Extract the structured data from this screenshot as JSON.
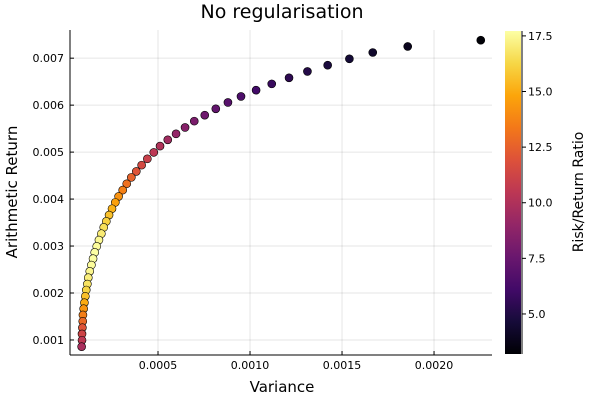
{
  "chart_data": {
    "type": "scatter",
    "title": "No regularisation",
    "xlabel": "Variance",
    "ylabel": "Arithmetic Return",
    "xlim": [
      2.17e-05,
      0.002315
    ],
    "ylim": [
      0.00068,
      0.0076
    ],
    "grid": true,
    "legend": "none",
    "x_ticks": [
      {
        "value": 0.0005,
        "label": "0.0005"
      },
      {
        "value": 0.001,
        "label": "0.0010"
      },
      {
        "value": 0.0015,
        "label": "0.0015"
      },
      {
        "value": 0.002,
        "label": "0.0020"
      }
    ],
    "y_ticks": [
      {
        "value": 0.001,
        "label": "0.001"
      },
      {
        "value": 0.002,
        "label": "0.002"
      },
      {
        "value": 0.003,
        "label": "0.003"
      },
      {
        "value": 0.004,
        "label": "0.004"
      },
      {
        "value": 0.005,
        "label": "0.005"
      },
      {
        "value": 0.006,
        "label": "0.006"
      },
      {
        "value": 0.007,
        "label": "0.007"
      }
    ],
    "colorbar": {
      "label": "Risk/Return Ratio",
      "colormap": "inferno",
      "range": [
        3.2,
        17.72
      ],
      "ticks": [
        {
          "value": 5.0,
          "label": "5.0"
        },
        {
          "value": 7.5,
          "label": "7.5"
        },
        {
          "value": 10.0,
          "label": "10.0"
        },
        {
          "value": 12.5,
          "label": "12.5"
        },
        {
          "value": 15.0,
          "label": "15.0"
        },
        {
          "value": 17.5,
          "label": "17.5"
        }
      ]
    },
    "x": [
      0.002254,
      0.001857,
      0.001667,
      0.00154,
      0.001422,
      0.001312,
      0.001212,
      0.001118,
      0.001033,
      0.000951,
      0.00088,
      0.000814,
      0.000754,
      0.000697,
      0.000647,
      0.000598,
      0.000553,
      0.000511,
      0.000477,
      0.000442,
      0.000411,
      0.000382,
      0.000355,
      0.00033,
      0.000308,
      0.000286,
      0.000268,
      0.00025,
      0.000234,
      0.000219,
      0.000205,
      0.000192,
      0.000179,
      0.000167,
      0.000156,
      0.000147,
      0.000138,
      0.000129,
      0.000121,
      0.000116,
      0.00011,
      0.000105,
      0.0001,
      9.6e-05,
      9.2e-05,
      9.1e-05,
      8.9e-05,
      8.7e-05,
      8.7e-05,
      8.5e-05
    ],
    "y": [
      0.007383,
      0.007249,
      0.007121,
      0.006986,
      0.006851,
      0.006717,
      0.006582,
      0.006453,
      0.006319,
      0.006185,
      0.006057,
      0.005922,
      0.005787,
      0.00566,
      0.005525,
      0.005389,
      0.005262,
      0.005128,
      0.004994,
      0.004857,
      0.004723,
      0.004589,
      0.004462,
      0.004326,
      0.004191,
      0.004057,
      0.00393,
      0.003794,
      0.00366,
      0.003526,
      0.003398,
      0.003262,
      0.003128,
      0.002994,
      0.002866,
      0.00273,
      0.002596,
      0.002462,
      0.002326,
      0.002191,
      0.002064,
      0.00193,
      0.001794,
      0.001666,
      0.001532,
      0.001398,
      0.001262,
      0.001128,
      0.000994,
      0.000857
    ],
    "color_values": [
      3.28,
      3.9,
      4.27,
      4.54,
      4.82,
      5.12,
      5.43,
      5.77,
      6.12,
      6.5,
      6.88,
      7.28,
      7.68,
      8.12,
      8.54,
      9.01,
      9.52,
      10.04,
      10.47,
      10.99,
      11.49,
      12.01,
      12.57,
      13.11,
      13.61,
      14.19,
      14.66,
      15.18,
      15.64,
      16.1,
      16.58,
      16.99,
      17.47,
      17.6,
      17.7,
      17.7,
      17.6,
      17.4,
      17.1,
      16.7,
      16.2,
      15.6,
      15.0,
      14.3,
      13.6,
      12.8,
      12.0,
      11.2,
      10.5,
      9.8
    ]
  }
}
